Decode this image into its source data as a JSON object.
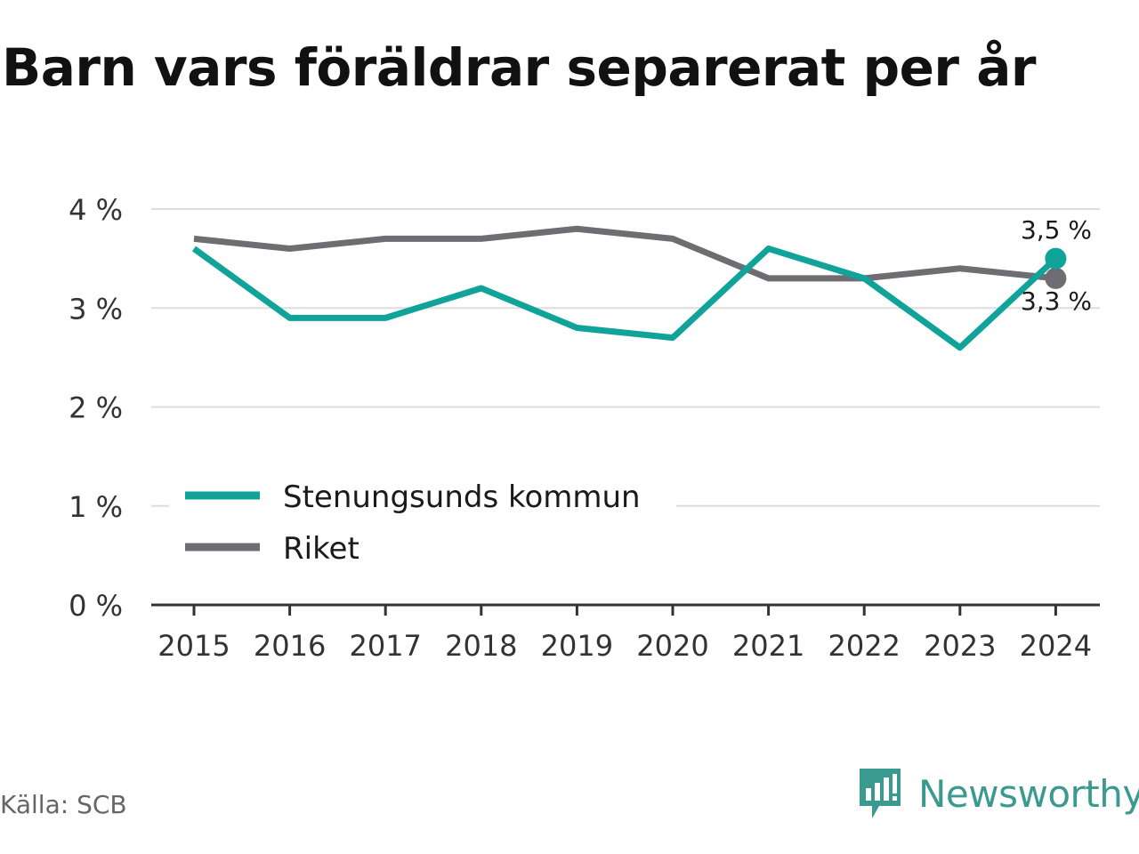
{
  "source": "Källa: SCB",
  "brand": {
    "name": "Newsworthy",
    "icon": "newsworthy-logo-icon",
    "color": "#3a9a8f"
  },
  "chart_data": {
    "type": "line",
    "title": "Barn vars föräldrar separerat per år",
    "x": [
      "2015",
      "2016",
      "2017",
      "2018",
      "2019",
      "2020",
      "2021",
      "2022",
      "2023",
      "2024"
    ],
    "y_ticks": [
      "0 %",
      "1 %",
      "2 %",
      "3 %",
      "4 %"
    ],
    "ylim": [
      0,
      4
    ],
    "grid": true,
    "legend_position": "bottom-left",
    "series": [
      {
        "name": "Stenungsunds kommun",
        "color": "#10a39a",
        "values": [
          3.6,
          2.9,
          2.9,
          3.2,
          2.8,
          2.7,
          3.6,
          3.3,
          2.6,
          3.5
        ],
        "end_label": "3,5 %"
      },
      {
        "name": "Riket",
        "color": "#6e6d72",
        "values": [
          3.7,
          3.6,
          3.7,
          3.7,
          3.8,
          3.7,
          3.3,
          3.3,
          3.4,
          3.3
        ],
        "end_label": "3,3 %"
      }
    ]
  }
}
